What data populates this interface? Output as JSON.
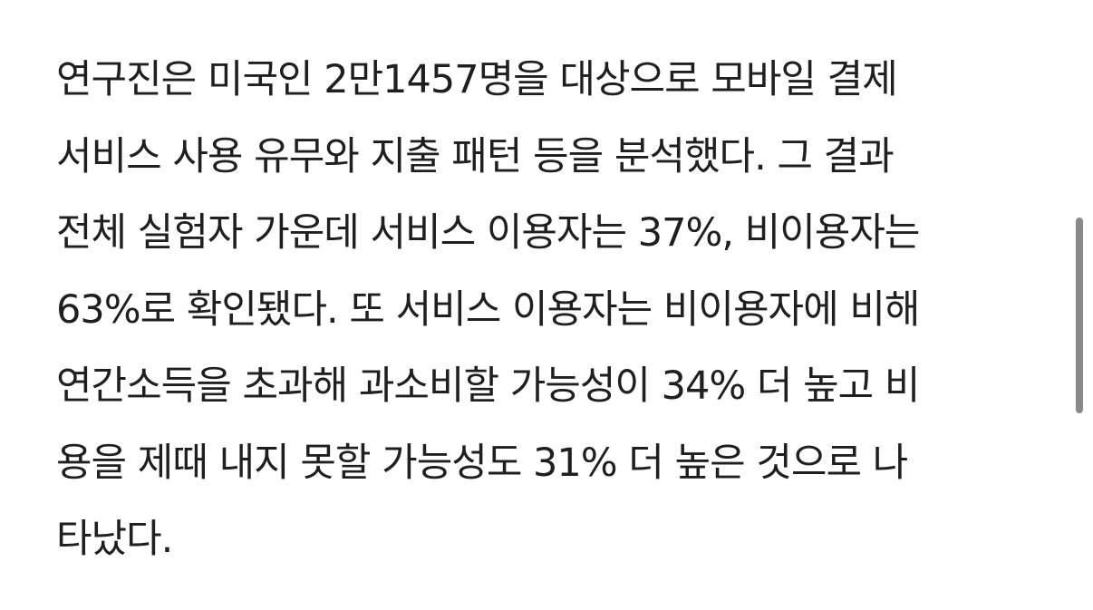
{
  "article": {
    "lines": [
      "연구진은 미국인 2만1457명을 대상으로 모바일 결제",
      "서비스 사용 유무와 지출 패턴 등을 분석했다. 그 결과",
      "전체 실험자 가운데 서비스 이용자는 37%, 비이용자는",
      "63%로 확인됐다. 또 서비스 이용자는 비이용자에 비해",
      "연간소득을 초과해 과소비할 가능성이 34% 더 높고 비",
      "용을 제때 내지 못할 가능성도 31% 더 높은 것으로 나",
      "타났다."
    ]
  }
}
